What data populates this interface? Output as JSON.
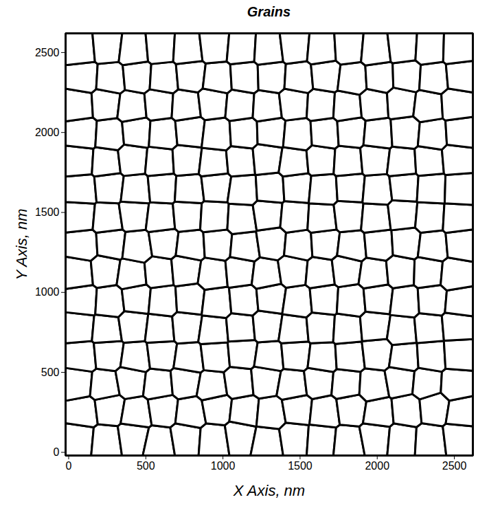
{
  "chart_data": {
    "type": "voronoi",
    "title": "Grains",
    "x_label": "X Axis, nm",
    "y_label": "Y Axis, nm",
    "xlim": [
      -20,
      2620
    ],
    "ylim": [
      -20,
      2620
    ],
    "xticks": [
      0,
      500,
      1000,
      1500,
      2000,
      2500
    ],
    "yticks": [
      0,
      500,
      1000,
      1500,
      2000,
      2500
    ],
    "color": "#ffffff",
    "x": [
      70,
      240,
      420,
      585,
      760,
      940,
      1110,
      1290,
      1460,
      1640,
      1810,
      1990,
      2160,
      2340,
      2530,
      95,
      260,
      440,
      610,
      790,
      960,
      1140,
      1310,
      1480,
      1660,
      1830,
      2010,
      2190,
      2370,
      2545,
      60,
      230,
      405,
      580,
      755,
      930,
      1105,
      1275,
      1450,
      1620,
      1800,
      1975,
      2150,
      2320,
      2510,
      85,
      255,
      435,
      600,
      780,
      950,
      1125,
      1300,
      1470,
      1645,
      1820,
      2000,
      2175,
      2350,
      2525,
      70,
      245,
      420,
      590,
      765,
      940,
      1115,
      1285,
      1460,
      1635,
      1805,
      1985,
      2160,
      2335,
      2515,
      90,
      265,
      440,
      610,
      785,
      960,
      1135,
      1310,
      1485,
      1655,
      1830,
      2005,
      2180,
      2355,
      2535,
      65,
      235,
      410,
      585,
      760,
      935,
      1110,
      1280,
      1455,
      1630,
      1800,
      1980,
      2150,
      2330,
      2505,
      95,
      270,
      445,
      615,
      790,
      965,
      1140,
      1315,
      1490,
      1660,
      1835,
      2010,
      2185,
      2360,
      2540,
      75,
      250,
      425,
      595,
      770,
      945,
      1120,
      1290,
      1465,
      1640,
      1815,
      1990,
      2165,
      2340,
      2520,
      85,
      260,
      435,
      605,
      780,
      955,
      1130,
      1305,
      1480,
      1650,
      1825,
      2000,
      2175,
      2350,
      2530,
      70,
      240,
      415,
      590,
      765,
      940,
      1115,
      1285,
      1460,
      1635,
      1810,
      1985,
      2160,
      2335,
      2515,
      90,
      265,
      440,
      610,
      785,
      960,
      1135,
      1310,
      1485,
      1660,
      1830,
      2005,
      2180,
      2360,
      2535,
      65,
      240,
      410,
      585,
      760,
      935,
      1110,
      1285,
      1460,
      1635,
      1805,
      1980,
      2155,
      2330,
      2510,
      95,
      270,
      445,
      615,
      790,
      965,
      1140,
      1315,
      1490,
      1665,
      1840,
      2015,
      2190,
      2365,
      2540,
      75,
      250,
      420,
      595,
      770,
      945,
      1120,
      1295,
      1465,
      1640,
      1815,
      1990,
      2165,
      2340,
      2520
    ],
    "y": [
      85,
      70,
      95,
      60,
      88,
      75,
      100,
      65,
      90,
      78,
      62,
      95,
      80,
      70,
      92,
      250,
      270,
      240,
      265,
      245,
      275,
      255,
      240,
      268,
      250,
      272,
      245,
      260,
      275,
      248,
      430,
      415,
      445,
      425,
      440,
      410,
      435,
      450,
      420,
      440,
      425,
      415,
      445,
      430,
      420,
      600,
      615,
      590,
      610,
      585,
      605,
      620,
      595,
      610,
      590,
      600,
      620,
      595,
      605,
      615,
      780,
      765,
      790,
      770,
      785,
      760,
      775,
      790,
      765,
      780,
      770,
      785,
      760,
      775,
      790,
      950,
      940,
      960,
      945,
      955,
      935,
      950,
      965,
      940,
      955,
      945,
      960,
      940,
      950,
      935,
      1120,
      1135,
      1110,
      1125,
      1140,
      1115,
      1130,
      1110,
      1135,
      1120,
      1140,
      1115,
      1130,
      1125,
      1110,
      1295,
      1305,
      1285,
      1310,
      1290,
      1300,
      1285,
      1310,
      1295,
      1305,
      1285,
      1300,
      1310,
      1290,
      1305,
      1475,
      1460,
      1485,
      1465,
      1480,
      1470,
      1460,
      1485,
      1470,
      1460,
      1480,
      1465,
      1485,
      1470,
      1460,
      1645,
      1660,
      1640,
      1655,
      1645,
      1665,
      1640,
      1650,
      1660,
      1645,
      1655,
      1640,
      1660,
      1650,
      1645,
      1820,
      1810,
      1830,
      1815,
      1825,
      1805,
      1820,
      1835,
      1810,
      1825,
      1815,
      1830,
      1810,
      1820,
      1835,
      1995,
      1985,
      2000,
      1990,
      2005,
      1985,
      1995,
      2000,
      1985,
      1995,
      2005,
      1990,
      2000,
      1985,
      1995,
      2170,
      2180,
      2160,
      2175,
      2165,
      2185,
      2170,
      2160,
      2180,
      2170,
      2160,
      2175,
      2185,
      2165,
      2175,
      2345,
      2335,
      2350,
      2340,
      2355,
      2335,
      2345,
      2350,
      2340,
      2355,
      2335,
      2345,
      2350,
      2340,
      2355,
      2520,
      2535,
      2515,
      2530,
      2520,
      2540,
      2525,
      2515,
      2535,
      2520,
      2530,
      2515,
      2535,
      2525,
      2520
    ]
  }
}
